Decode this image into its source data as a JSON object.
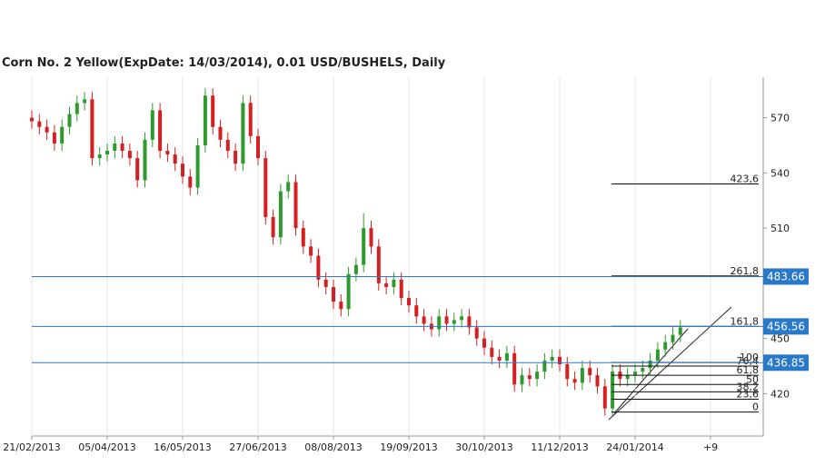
{
  "chart_data": {
    "type": "candlestick",
    "title": "Corn  No. 2 Yellow(ExpDate: 14/03/2014), 0.01 USD/BUSHELS, Daily",
    "categories": [
      "21/02/2013",
      null,
      null,
      null,
      null,
      null,
      null,
      null,
      null,
      null,
      "05/04/2013",
      null,
      null,
      null,
      null,
      null,
      null,
      null,
      null,
      null,
      "16/05/2013",
      null,
      null,
      null,
      null,
      null,
      null,
      null,
      null,
      null,
      "27/06/2013",
      null,
      null,
      null,
      null,
      null,
      null,
      null,
      null,
      null,
      "08/08/2013",
      null,
      null,
      null,
      null,
      null,
      null,
      null,
      null,
      null,
      "19/09/2013",
      null,
      null,
      null,
      null,
      null,
      null,
      null,
      null,
      null,
      "30/10/2013",
      null,
      null,
      null,
      null,
      null,
      null,
      null,
      null,
      null,
      "11/12/2013",
      null,
      null,
      null,
      null,
      null,
      null,
      null,
      null,
      null,
      "24/01/2014",
      null,
      null,
      null,
      null,
      null,
      null,
      null,
      null,
      null,
      "+9",
      null,
      null,
      null,
      null,
      null,
      null,
      null
    ],
    "open": [
      570,
      568,
      565,
      562,
      556,
      565,
      572,
      578,
      580,
      548,
      550,
      552,
      556,
      552,
      548,
      536,
      558,
      574,
      552,
      550,
      545,
      538,
      532,
      555,
      582,
      565,
      558,
      552,
      545,
      578,
      560,
      548,
      516,
      505,
      530,
      535,
      510,
      500,
      495,
      482,
      478,
      470,
      466,
      485,
      490,
      510,
      500,
      480,
      478,
      482,
      472,
      468,
      462,
      458,
      455,
      462,
      458,
      460,
      462,
      456,
      450,
      445,
      440,
      438,
      442,
      425,
      430,
      428,
      432,
      438,
      440,
      436,
      428,
      426,
      434,
      430,
      424,
      412,
      432,
      428,
      430,
      432,
      434,
      438,
      444,
      448,
      452,
      null,
      null,
      null,
      null,
      null,
      null,
      null,
      null,
      null,
      null,
      null
    ],
    "high": [
      574,
      572,
      569,
      566,
      569,
      576,
      582,
      584,
      584,
      554,
      556,
      560,
      560,
      556,
      552,
      562,
      578,
      578,
      556,
      554,
      549,
      542,
      559,
      586,
      586,
      569,
      562,
      556,
      582,
      582,
      564,
      552,
      520,
      534,
      539,
      539,
      514,
      504,
      499,
      486,
      482,
      474,
      489,
      494,
      518,
      514,
      504,
      484,
      486,
      486,
      476,
      472,
      466,
      462,
      466,
      466,
      464,
      466,
      466,
      460,
      454,
      449,
      444,
      446,
      446,
      434,
      434,
      436,
      442,
      444,
      444,
      440,
      432,
      438,
      438,
      434,
      428,
      436,
      436,
      434,
      436,
      438,
      442,
      448,
      452,
      456,
      460,
      null,
      null,
      null,
      null,
      null,
      null,
      null,
      null,
      null,
      null,
      null
    ],
    "low": [
      564,
      561,
      558,
      552,
      552,
      561,
      568,
      574,
      544,
      544,
      546,
      548,
      548,
      544,
      532,
      532,
      554,
      548,
      546,
      541,
      534,
      528,
      528,
      551,
      561,
      554,
      548,
      541,
      541,
      556,
      544,
      512,
      501,
      501,
      526,
      506,
      496,
      491,
      478,
      474,
      466,
      462,
      462,
      481,
      486,
      496,
      476,
      474,
      474,
      468,
      464,
      458,
      454,
      451,
      451,
      454,
      454,
      456,
      452,
      446,
      441,
      436,
      434,
      434,
      421,
      421,
      424,
      424,
      428,
      434,
      432,
      424,
      422,
      422,
      426,
      420,
      408,
      408,
      424,
      424,
      426,
      428,
      430,
      434,
      440,
      444,
      448,
      null,
      null,
      null,
      null,
      null,
      null,
      null,
      null,
      null,
      null,
      null
    ],
    "close": [
      568,
      565,
      562,
      556,
      565,
      572,
      578,
      580,
      548,
      550,
      552,
      556,
      552,
      548,
      536,
      558,
      574,
      552,
      550,
      545,
      538,
      532,
      555,
      582,
      565,
      558,
      552,
      545,
      578,
      560,
      548,
      516,
      505,
      530,
      535,
      510,
      500,
      495,
      482,
      478,
      470,
      466,
      485,
      490,
      510,
      500,
      480,
      478,
      482,
      472,
      468,
      462,
      458,
      455,
      462,
      458,
      460,
      462,
      456,
      450,
      445,
      440,
      438,
      442,
      425,
      430,
      428,
      432,
      438,
      440,
      436,
      428,
      426,
      434,
      430,
      424,
      412,
      432,
      428,
      430,
      432,
      434,
      438,
      444,
      448,
      452,
      456,
      null,
      null,
      null,
      null,
      null,
      null,
      null,
      null,
      null,
      null,
      null
    ],
    "up_color": "#2e9a2e",
    "down_color": "#d42020",
    "ylim": [
      397,
      592
    ],
    "yticks": [
      420,
      450,
      510,
      540,
      570
    ],
    "price_lines": [
      483.66,
      456.56,
      436.85
    ],
    "price_line_color": "#2a78c8",
    "fib_levels": [
      {
        "value": 534,
        "label": "423,6"
      },
      {
        "value": 484,
        "label": "261,8"
      },
      {
        "value": 456.6,
        "label": "161,8"
      },
      {
        "value": 437,
        "label": "100"
      },
      {
        "value": 435,
        "label": "76,4"
      },
      {
        "value": 430,
        "label": "61,8"
      },
      {
        "value": 425,
        "label": "50"
      },
      {
        "value": 421,
        "label": "38,2"
      },
      {
        "value": 417,
        "label": "23,6"
      },
      {
        "value": 410,
        "label": "0"
      }
    ],
    "grid": true
  }
}
